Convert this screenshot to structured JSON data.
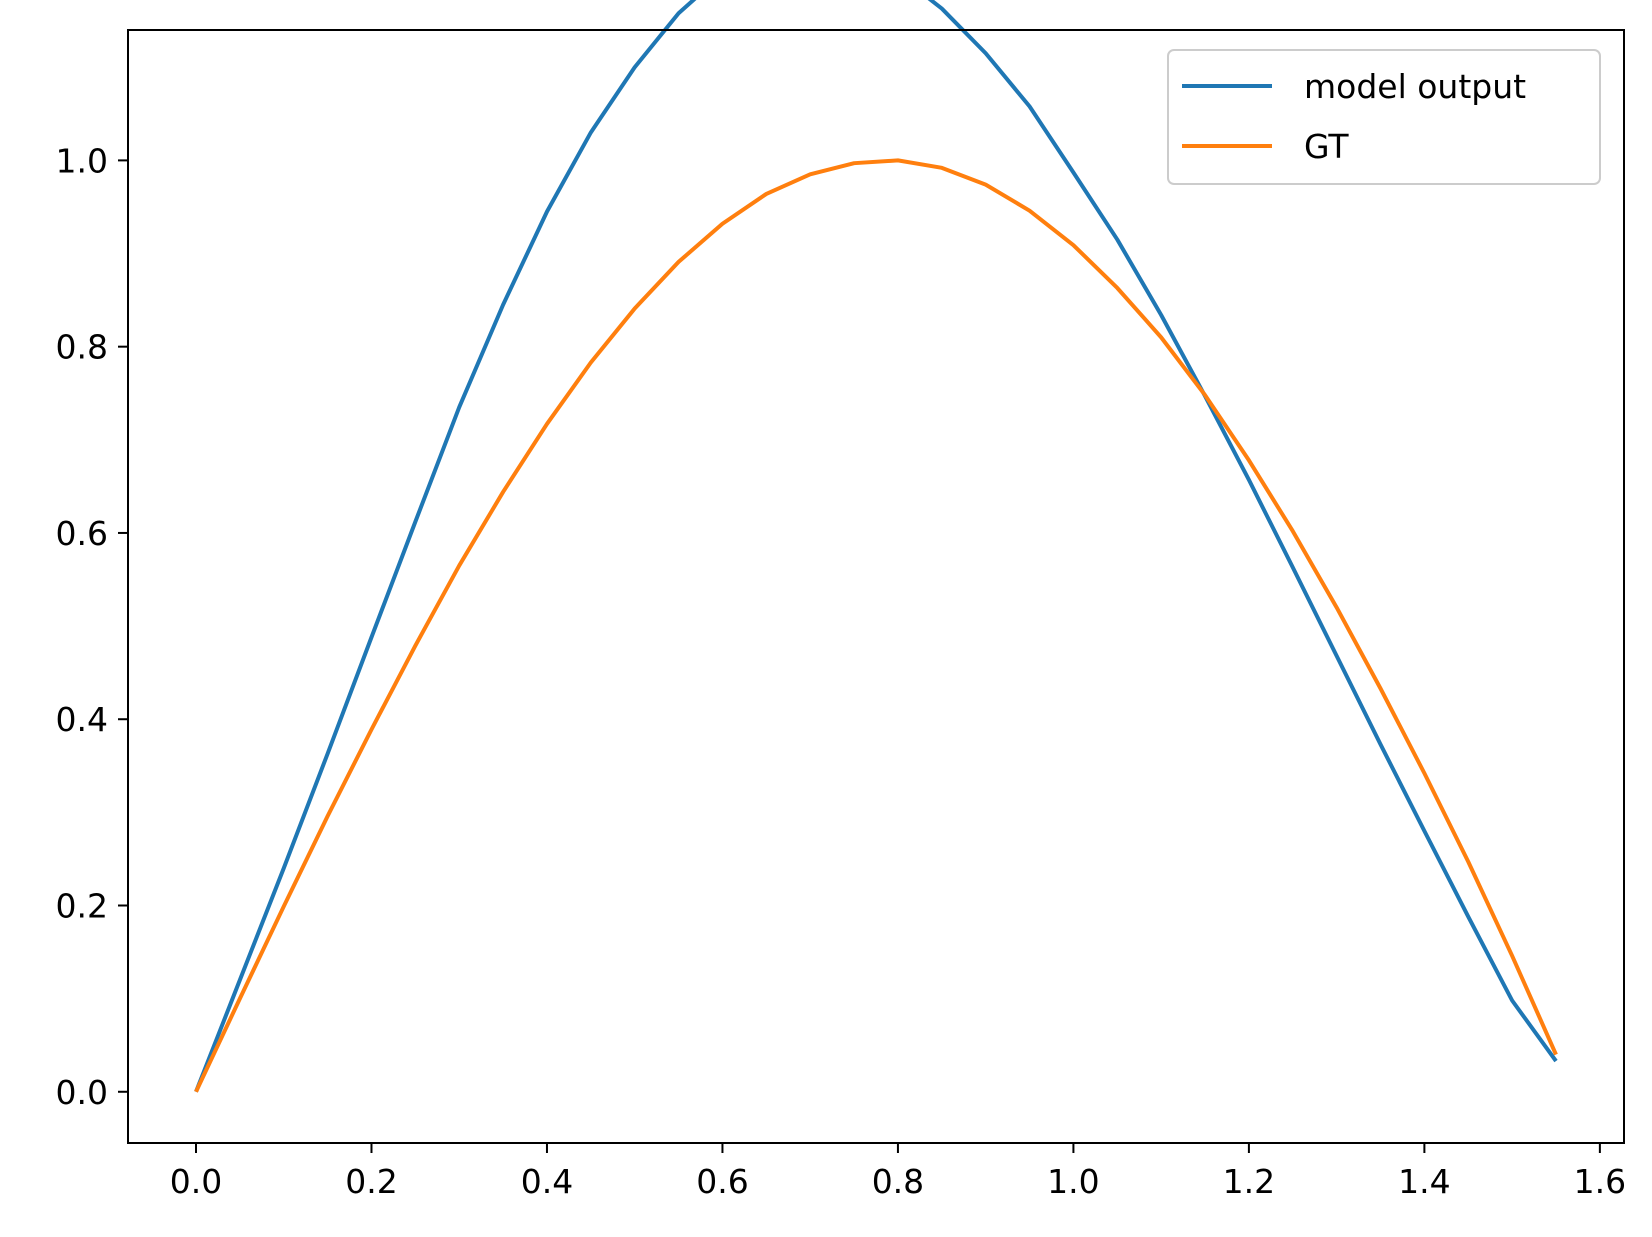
{
  "chart_data": {
    "type": "line",
    "title": "",
    "xlabel": "",
    "ylabel": "",
    "xlim": [
      -0.0775,
      1.6275
    ],
    "ylim": [
      -0.055,
      1.14
    ],
    "x_ticks": [
      0.0,
      0.2,
      0.4,
      0.6,
      0.8,
      1.0,
      1.2,
      1.4,
      1.6
    ],
    "x_tick_labels": [
      "0.0",
      "0.2",
      "0.4",
      "0.6",
      "0.8",
      "1.0",
      "1.2",
      "1.4",
      "1.6"
    ],
    "y_ticks": [
      0.0,
      0.2,
      0.4,
      0.6,
      0.8,
      1.0
    ],
    "y_tick_labels": [
      "0.0",
      "0.2",
      "0.4",
      "0.6",
      "0.8",
      "1.0"
    ],
    "grid": false,
    "legend_position": "top-right",
    "x": [
      0.0,
      0.05,
      0.1,
      0.15,
      0.2,
      0.25,
      0.3,
      0.35,
      0.4,
      0.45,
      0.5,
      0.55,
      0.6,
      0.65,
      0.7,
      0.75,
      0.8,
      0.85,
      0.9,
      0.95,
      1.0,
      1.05,
      1.1,
      1.15,
      1.2,
      1.25,
      1.3,
      1.35,
      1.4,
      1.45,
      1.5,
      1.55
    ],
    "series": [
      {
        "name": "model output",
        "color": "#1f77b4",
        "values": [
          0.0,
          0.12,
          0.24,
          0.363,
          0.488,
          0.612,
          0.735,
          0.845,
          0.945,
          1.03,
          1.1,
          1.158,
          1.2,
          1.223,
          1.23,
          1.222,
          1.2,
          1.163,
          1.115,
          1.058,
          0.987,
          0.915,
          0.834,
          0.747,
          0.657,
          0.563,
          0.468,
          0.373,
          0.28,
          0.188,
          0.098,
          0.033
        ]
      },
      {
        "name": "GT",
        "color": "#ff7f0e",
        "values": [
          0.0,
          0.1,
          0.199,
          0.296,
          0.389,
          0.479,
          0.565,
          0.644,
          0.717,
          0.783,
          0.841,
          0.891,
          0.932,
          0.964,
          0.985,
          0.997,
          1.0,
          0.992,
          0.974,
          0.946,
          0.909,
          0.863,
          0.81,
          0.748,
          0.678,
          0.602,
          0.52,
          0.433,
          0.342,
          0.247,
          0.146,
          0.04
        ]
      }
    ]
  }
}
